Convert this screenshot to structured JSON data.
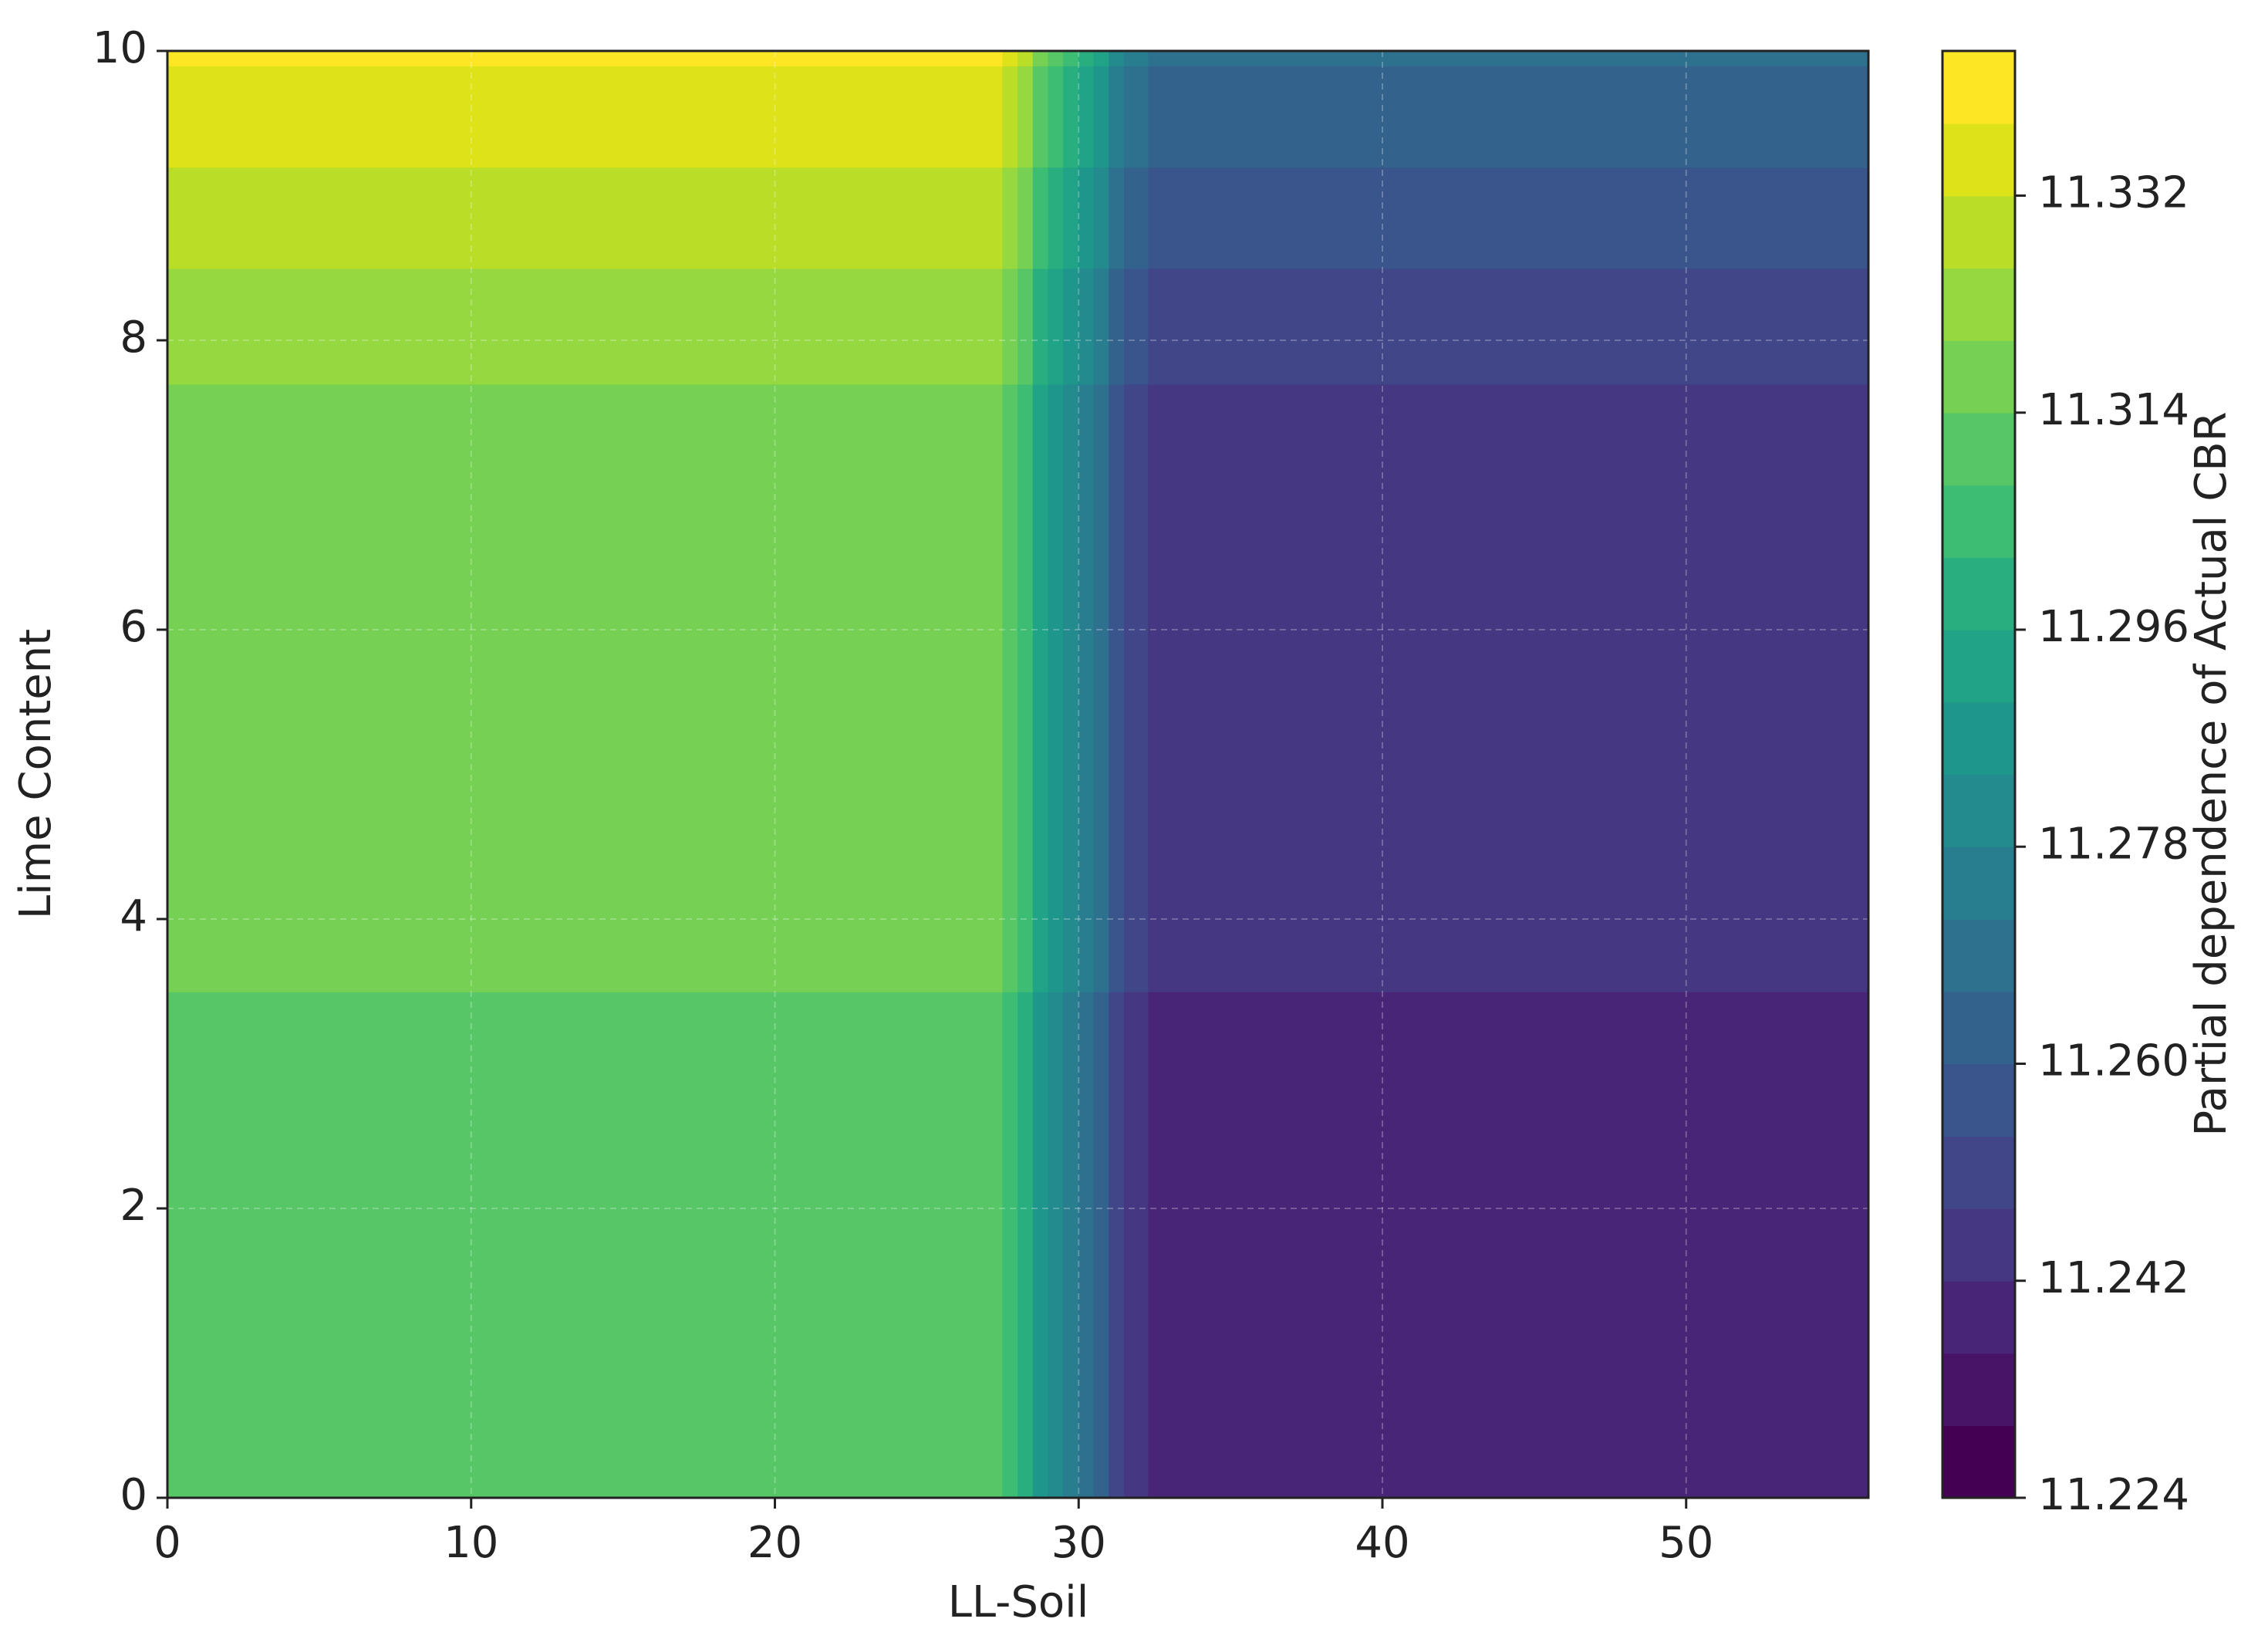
{
  "chart_data": {
    "type": "contour",
    "xlabel": "LL-Soil",
    "ylabel": "Lime Content",
    "colorbar_label": "Partial dependence of Actual CBR",
    "xlim": [
      0,
      56
    ],
    "ylim": [
      0,
      10
    ],
    "xticks": [
      0,
      10,
      20,
      30,
      40,
      50
    ],
    "yticks": [
      0,
      2,
      4,
      6,
      8,
      10
    ],
    "clim": [
      11.224,
      11.344
    ],
    "cticks": [
      {
        "value": 11.224,
        "label": "11.224"
      },
      {
        "value": 11.242,
        "label": "11.242"
      },
      {
        "value": 11.26,
        "label": "11.260"
      },
      {
        "value": 11.278,
        "label": "11.278"
      },
      {
        "value": 11.296,
        "label": "11.296"
      },
      {
        "value": 11.314,
        "label": "11.314"
      },
      {
        "value": 11.332,
        "label": "11.332"
      }
    ],
    "colors": [
      "#440154",
      "#481467",
      "#482576",
      "#453781",
      "#404688",
      "#39558c",
      "#33638d",
      "#2d718e",
      "#287d8e",
      "#238a8d",
      "#1f968b",
      "#20a386",
      "#29af7f",
      "#3dbc74",
      "#56c667",
      "#75d054",
      "#95d840",
      "#bade28",
      "#dde318",
      "#fde725"
    ],
    "grid": true,
    "x_edges": [
      0,
      27.5,
      28,
      28.5,
      29,
      29.5,
      30,
      30.5,
      31,
      31.5,
      32.3,
      56
    ],
    "y_edges": [
      0,
      3.5,
      7.7,
      8.5,
      9.2,
      9.9,
      10
    ],
    "z": [
      [
        11.311,
        11.304,
        11.297,
        11.289,
        11.282,
        11.275,
        11.268,
        11.261,
        11.253,
        11.246,
        11.239
      ],
      [
        11.317,
        11.31,
        11.303,
        11.295,
        11.288,
        11.281,
        11.274,
        11.267,
        11.259,
        11.252,
        11.245
      ],
      [
        11.323,
        11.316,
        11.309,
        11.301,
        11.294,
        11.287,
        11.28,
        11.273,
        11.265,
        11.258,
        11.251
      ],
      [
        11.329,
        11.322,
        11.315,
        11.307,
        11.3,
        11.293,
        11.286,
        11.279,
        11.271,
        11.264,
        11.257
      ],
      [
        11.335,
        11.328,
        11.321,
        11.313,
        11.306,
        11.299,
        11.292,
        11.285,
        11.277,
        11.27,
        11.263
      ],
      [
        11.341,
        11.334,
        11.327,
        11.319,
        11.312,
        11.305,
        11.298,
        11.291,
        11.283,
        11.276,
        11.269
      ]
    ]
  }
}
